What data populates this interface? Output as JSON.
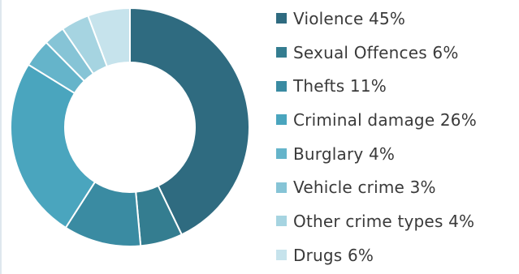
{
  "chart_data": {
    "type": "pie",
    "title": "",
    "categories": [
      "Violence",
      "Sexual Offences",
      "Thefts",
      "Criminal damage",
      "Burglary",
      "Vehicle crime",
      "Other crime types",
      "Drugs"
    ],
    "values": [
      45,
      6,
      11,
      26,
      4,
      3,
      4,
      6
    ],
    "labels": [
      "Violence 45%",
      "Sexual Offences 6%",
      "Thefts 11%",
      "Criminal damage 26%",
      "Burglary 4%",
      "Vehicle crime 3%",
      "Other crime types 4%",
      "Drugs 6%"
    ],
    "colors": [
      "#2f6b80",
      "#347d90",
      "#3a8ba2",
      "#4aa5be",
      "#65b4ca",
      "#86c4d6",
      "#a6d4e1",
      "#c6e3ec"
    ],
    "donut": true,
    "legend_position": "right"
  }
}
